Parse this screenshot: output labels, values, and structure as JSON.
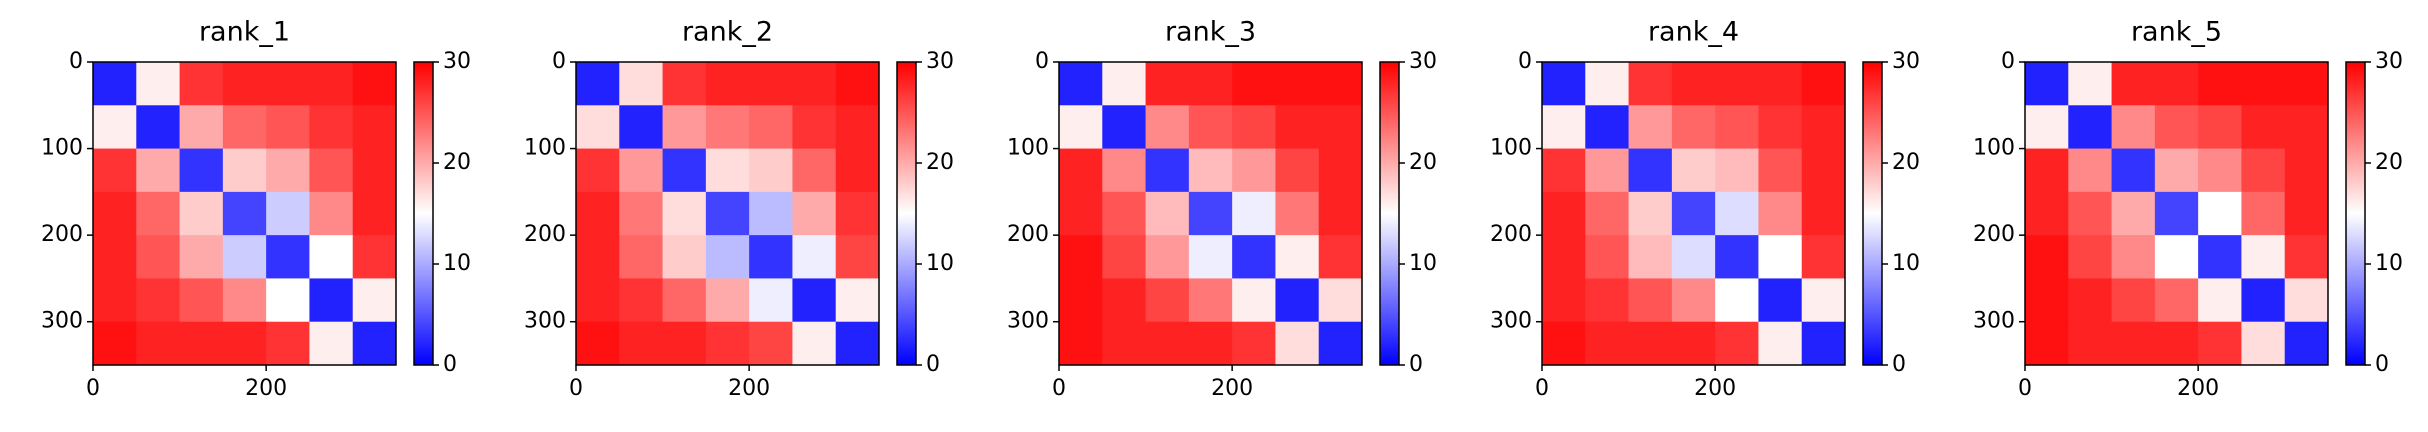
{
  "chart_data": [
    {
      "type": "heatmap",
      "title": "rank_1",
      "xbins": [
        0,
        50,
        100,
        150,
        200,
        250,
        300,
        350
      ],
      "ybins": [
        0,
        50,
        100,
        150,
        200,
        250,
        300,
        350
      ],
      "z": [
        [
          2,
          16,
          27,
          28,
          28,
          28,
          29
        ],
        [
          16,
          2,
          20,
          24,
          25,
          27,
          28
        ],
        [
          27,
          20,
          3,
          18,
          20,
          25,
          28
        ],
        [
          28,
          24,
          18,
          4,
          12,
          22,
          28
        ],
        [
          28,
          25,
          20,
          12,
          3,
          15,
          27
        ],
        [
          28,
          27,
          25,
          22,
          15,
          2,
          16
        ],
        [
          29,
          28,
          28,
          28,
          27,
          16,
          2
        ]
      ],
      "xlim": [
        0,
        350
      ],
      "ylim": [
        350,
        0
      ],
      "xticks": [
        0,
        200
      ],
      "yticks": [
        0,
        100,
        200,
        300
      ],
      "colormap": [
        "#0000ff",
        "#ffffff",
        "#ff0000"
      ],
      "zlim": [
        0,
        30
      ],
      "zticks": [
        0,
        10,
        20,
        30
      ]
    },
    {
      "type": "heatmap",
      "title": "rank_2",
      "xbins": [
        0,
        50,
        100,
        150,
        200,
        250,
        300,
        350
      ],
      "ybins": [
        0,
        50,
        100,
        150,
        200,
        250,
        300,
        350
      ],
      "z": [
        [
          2,
          17,
          27,
          28,
          28,
          28,
          29
        ],
        [
          17,
          2,
          21,
          23,
          24,
          27,
          28
        ],
        [
          27,
          21,
          3,
          17,
          18,
          24,
          28
        ],
        [
          28,
          23,
          17,
          4,
          11,
          20,
          27
        ],
        [
          28,
          24,
          18,
          11,
          3,
          14,
          26
        ],
        [
          28,
          27,
          24,
          20,
          14,
          2,
          16
        ],
        [
          29,
          28,
          28,
          27,
          26,
          16,
          2
        ]
      ],
      "xlim": [
        0,
        350
      ],
      "ylim": [
        350,
        0
      ],
      "xticks": [
        0,
        200
      ],
      "yticks": [
        0,
        100,
        200,
        300
      ],
      "colormap": [
        "#0000ff",
        "#ffffff",
        "#ff0000"
      ],
      "zlim": [
        0,
        30
      ],
      "zticks": [
        0,
        10,
        20,
        30
      ]
    },
    {
      "type": "heatmap",
      "title": "rank_3",
      "xbins": [
        0,
        50,
        100,
        150,
        200,
        250,
        300,
        350
      ],
      "ybins": [
        0,
        50,
        100,
        150,
        200,
        250,
        300,
        350
      ],
      "z": [
        [
          2,
          16,
          28,
          28,
          29,
          29,
          29
        ],
        [
          16,
          2,
          22,
          25,
          26,
          28,
          28
        ],
        [
          28,
          22,
          3,
          19,
          21,
          26,
          28
        ],
        [
          28,
          25,
          19,
          4,
          14,
          23,
          28
        ],
        [
          29,
          26,
          21,
          14,
          3,
          16,
          27
        ],
        [
          29,
          28,
          26,
          23,
          16,
          2,
          17
        ],
        [
          29,
          28,
          28,
          28,
          27,
          17,
          2
        ]
      ],
      "xlim": [
        0,
        350
      ],
      "ylim": [
        350,
        0
      ],
      "xticks": [
        0,
        200
      ],
      "yticks": [
        0,
        100,
        200,
        300
      ],
      "colormap": [
        "#0000ff",
        "#ffffff",
        "#ff0000"
      ],
      "zlim": [
        0,
        30
      ],
      "zticks": [
        0,
        10,
        20,
        30
      ]
    },
    {
      "type": "heatmap",
      "title": "rank_4",
      "xbins": [
        0,
        50,
        100,
        150,
        200,
        250,
        300,
        350
      ],
      "ybins": [
        0,
        50,
        100,
        150,
        200,
        250,
        300,
        350
      ],
      "z": [
        [
          2,
          16,
          27,
          28,
          28,
          28,
          29
        ],
        [
          16,
          2,
          21,
          24,
          25,
          27,
          28
        ],
        [
          27,
          21,
          3,
          18,
          19,
          25,
          28
        ],
        [
          28,
          24,
          18,
          4,
          13,
          22,
          28
        ],
        [
          28,
          25,
          19,
          13,
          3,
          15,
          27
        ],
        [
          28,
          27,
          25,
          22,
          15,
          2,
          16
        ],
        [
          29,
          28,
          28,
          28,
          27,
          16,
          2
        ]
      ],
      "xlim": [
        0,
        350
      ],
      "ylim": [
        350,
        0
      ],
      "xticks": [
        0,
        200
      ],
      "yticks": [
        0,
        100,
        200,
        300
      ],
      "colormap": [
        "#0000ff",
        "#ffffff",
        "#ff0000"
      ],
      "zlim": [
        0,
        30
      ],
      "zticks": [
        0,
        10,
        20,
        30
      ]
    },
    {
      "type": "heatmap",
      "title": "rank_5",
      "xbins": [
        0,
        50,
        100,
        150,
        200,
        250,
        300,
        350
      ],
      "ybins": [
        0,
        50,
        100,
        150,
        200,
        250,
        300,
        350
      ],
      "z": [
        [
          2,
          16,
          28,
          28,
          29,
          29,
          29
        ],
        [
          16,
          2,
          22,
          25,
          26,
          28,
          28
        ],
        [
          28,
          22,
          3,
          20,
          22,
          26,
          28
        ],
        [
          28,
          25,
          20,
          4,
          15,
          24,
          28
        ],
        [
          29,
          26,
          22,
          15,
          3,
          16,
          27
        ],
        [
          29,
          28,
          26,
          24,
          16,
          2,
          17
        ],
        [
          29,
          28,
          28,
          28,
          27,
          17,
          2
        ]
      ],
      "xlim": [
        0,
        350
      ],
      "ylim": [
        350,
        0
      ],
      "xticks": [
        0,
        200
      ],
      "yticks": [
        0,
        100,
        200,
        300
      ],
      "colormap": [
        "#0000ff",
        "#ffffff",
        "#ff0000"
      ],
      "zlim": [
        0,
        30
      ],
      "zticks": [
        0,
        10,
        20,
        30
      ]
    }
  ]
}
